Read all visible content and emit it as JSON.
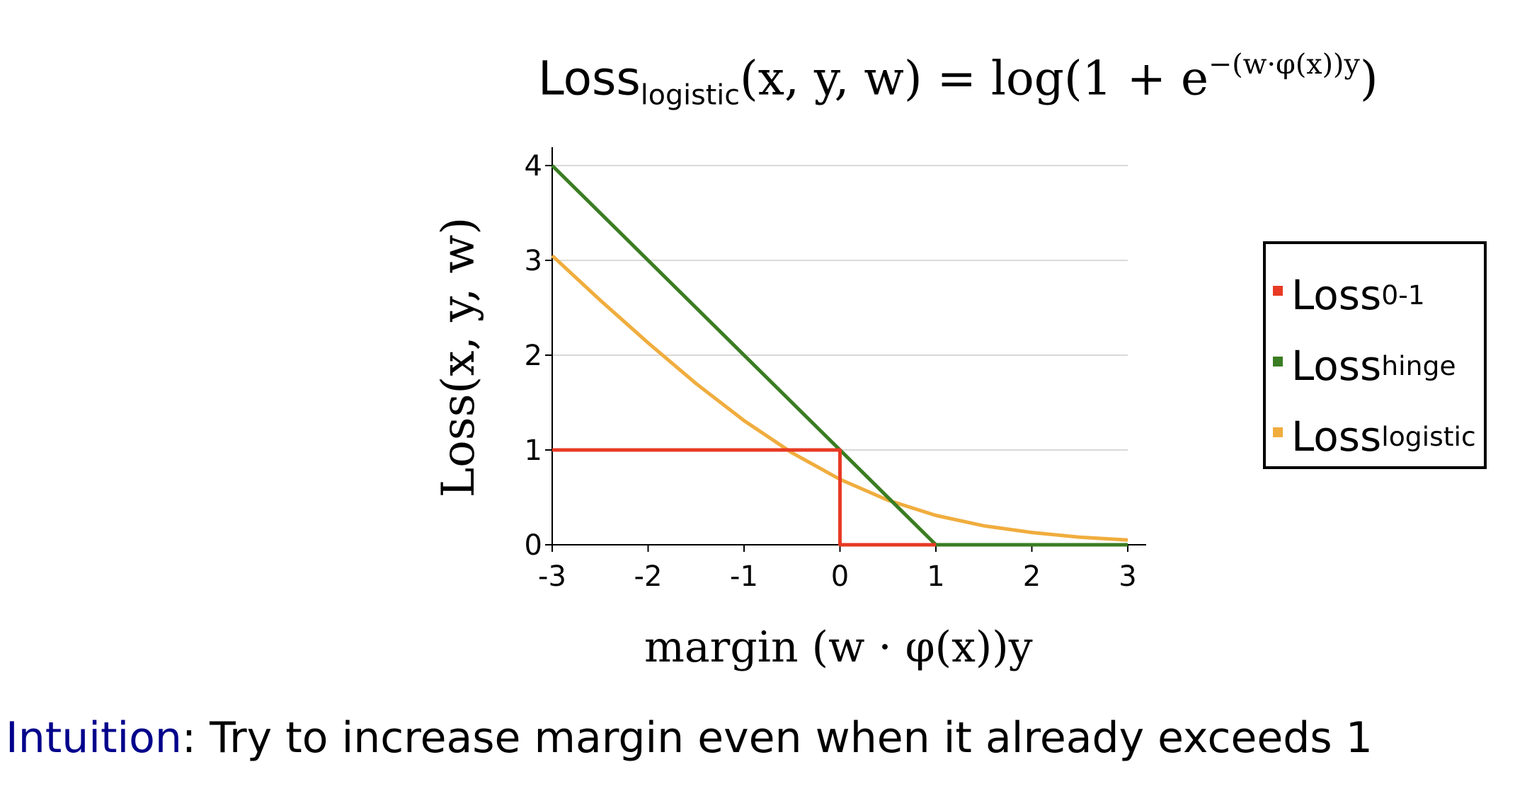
{
  "title": {
    "loss_word": "Loss",
    "loss_sub": "logistic",
    "args": "(x, y, w) = log(1 + e",
    "exponent": "−(w·φ(x))y",
    "close": ")"
  },
  "axes": {
    "ylabel": "Loss(x, y, w)",
    "xlabel": "margin (w · φ(x))y"
  },
  "legend": [
    {
      "base": "Loss",
      "sub": "0-1",
      "color": "#e83a24"
    },
    {
      "base": "Loss",
      "sub": "hinge",
      "color": "#3a7d22"
    },
    {
      "base": "Loss",
      "sub": "logistic",
      "color": "#f0ad3e"
    }
  ],
  "footer": {
    "keyword": "Intuition",
    "text": ": Try to increase margin even when it already exceeds 1"
  },
  "chart_data": {
    "type": "line",
    "xlim": [
      -3,
      3
    ],
    "ylim": [
      0,
      4
    ],
    "xticks": [
      "-3",
      "-2",
      "-1",
      "0",
      "1",
      "2",
      "3"
    ],
    "yticks": [
      "0",
      "1",
      "2",
      "3",
      "4"
    ],
    "grid": "horizontal",
    "legend_position": "right",
    "series": [
      {
        "name": "Loss0-1",
        "color": "#e83a24",
        "points": [
          [
            -3,
            1
          ],
          [
            0,
            1
          ],
          [
            0,
            0
          ],
          [
            1,
            0
          ]
        ]
      },
      {
        "name": "Losshinge",
        "color": "#3a7d22",
        "points": [
          [
            -3,
            4
          ],
          [
            1,
            0
          ],
          [
            3,
            0
          ]
        ]
      },
      {
        "name": "Losslogistic",
        "color": "#f0ad3e",
        "points": [
          [
            -3,
            3.05
          ],
          [
            -2.5,
            2.58
          ],
          [
            -2,
            2.13
          ],
          [
            -1.5,
            1.7
          ],
          [
            -1,
            1.31
          ],
          [
            -0.5,
            0.97
          ],
          [
            0,
            0.69
          ],
          [
            0.5,
            0.47
          ],
          [
            1,
            0.31
          ],
          [
            1.5,
            0.2
          ],
          [
            2,
            0.13
          ],
          [
            2.5,
            0.08
          ],
          [
            3,
            0.05
          ]
        ]
      }
    ]
  }
}
